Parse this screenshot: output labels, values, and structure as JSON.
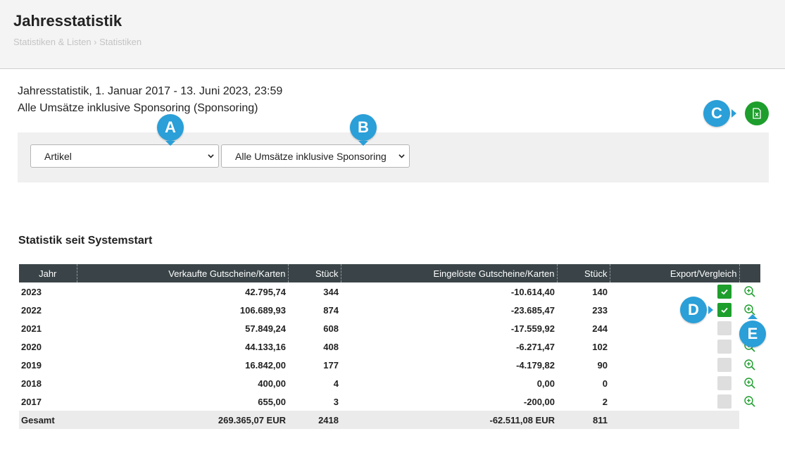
{
  "header": {
    "title": "Jahresstatistik",
    "breadcrumb": "Statistiken & Listen › Statistiken"
  },
  "info": {
    "line1": "Jahresstatistik, 1. Januar 2017 - 13. Juni 2023, 23:59",
    "line2": "Alle Umsätze inklusive Sponsoring (Sponsoring)"
  },
  "filters": {
    "group_select": "Artikel",
    "revenue_select": "Alle Umsätze inklusive Sponsoring"
  },
  "markers": {
    "a": "A",
    "b": "B",
    "c": "C",
    "d": "D",
    "e": "E"
  },
  "section": {
    "title": "Statistik seit Systemstart"
  },
  "table": {
    "headers": {
      "year": "Jahr",
      "sold": "Verkaufte Gutscheine/Karten",
      "qty_sold": "Stück",
      "redeemed": "Eingelöste Gutscheine/Karten",
      "qty_redeemed": "Stück",
      "export": "Export/Vergleich"
    },
    "rows": [
      {
        "year": "2023",
        "sold": "42.795,74",
        "qty_sold": "344",
        "redeemed": "-10.614,40",
        "qty_redeemed": "140",
        "checked": true
      },
      {
        "year": "2022",
        "sold": "106.689,93",
        "qty_sold": "874",
        "redeemed": "-23.685,47",
        "qty_redeemed": "233",
        "checked": true
      },
      {
        "year": "2021",
        "sold": "57.849,24",
        "qty_sold": "608",
        "redeemed": "-17.559,92",
        "qty_redeemed": "244",
        "checked": false
      },
      {
        "year": "2020",
        "sold": "44.133,16",
        "qty_sold": "408",
        "redeemed": "-6.271,47",
        "qty_redeemed": "102",
        "checked": false
      },
      {
        "year": "2019",
        "sold": "16.842,00",
        "qty_sold": "177",
        "redeemed": "-4.179,82",
        "qty_redeemed": "90",
        "checked": false
      },
      {
        "year": "2018",
        "sold": "400,00",
        "qty_sold": "4",
        "redeemed": "0,00",
        "qty_redeemed": "0",
        "checked": false
      },
      {
        "year": "2017",
        "sold": "655,00",
        "qty_sold": "3",
        "redeemed": "-200,00",
        "qty_redeemed": "2",
        "checked": false
      }
    ],
    "total": {
      "label": "Gesamt",
      "sold": "269.365,07 EUR",
      "qty_sold": "2418",
      "redeemed": "-62.511,08 EUR",
      "qty_redeemed": "811"
    }
  },
  "colors": {
    "accent_green": "#1e9e2d",
    "marker_blue": "#2a9fd8",
    "table_header": "#3a4448"
  }
}
